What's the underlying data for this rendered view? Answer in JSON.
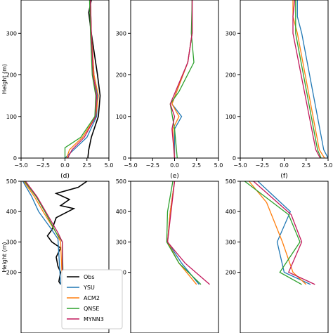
{
  "colors": {
    "Obs": "#000000",
    "YSU": "#1f77b4",
    "ACM2": "#ff7f0e",
    "QNSE": "#2ca02c",
    "MYNN3": "#c2185b"
  },
  "legend": [
    "Obs",
    "YSU",
    "ACM2",
    "QNSE",
    "MYNN3"
  ],
  "chart_data": [
    {
      "type": "line",
      "panel": "a",
      "title": "",
      "ylabel": "Height (m)",
      "xlim": [
        -5,
        5
      ],
      "ylim": [
        0,
        380
      ],
      "xticks": [
        "−5.0",
        "−2.5",
        "0.0",
        "2.5",
        "5.0"
      ],
      "yticks": [
        "0",
        "100",
        "200",
        "300"
      ],
      "series": [
        {
          "name": "Obs",
          "x": [
            3.0,
            2.7,
            3.0,
            3.7,
            4.0,
            3.8,
            3.0,
            2.7,
            2.6
          ],
          "y": [
            380,
            350,
            300,
            200,
            150,
            100,
            50,
            20,
            0
          ]
        },
        {
          "name": "YSU",
          "x": [
            2.9,
            3.0,
            3.3,
            3.7,
            3.6,
            2.5,
            1.0,
            0.0
          ],
          "y": [
            380,
            300,
            200,
            150,
            100,
            50,
            20,
            0
          ]
        },
        {
          "name": "ACM2",
          "x": [
            2.9,
            3.0,
            3.3,
            3.8,
            3.5,
            2.0,
            0.5,
            0.2
          ],
          "y": [
            380,
            300,
            200,
            150,
            100,
            50,
            20,
            0
          ]
        },
        {
          "name": "QNSE",
          "x": [
            2.8,
            2.9,
            3.1,
            3.5,
            3.4,
            1.8,
            0.0,
            0.0
          ],
          "y": [
            380,
            300,
            200,
            150,
            100,
            50,
            25,
            0
          ]
        },
        {
          "name": "MYNN3",
          "x": [
            2.9,
            3.0,
            3.2,
            3.6,
            3.5,
            2.2,
            0.8,
            0.3
          ],
          "y": [
            380,
            300,
            200,
            150,
            100,
            50,
            20,
            0
          ]
        }
      ]
    },
    {
      "type": "line",
      "panel": "b",
      "title": "",
      "ylabel": "",
      "xlim": [
        -5,
        5
      ],
      "ylim": [
        0,
        380
      ],
      "xticks": [
        "−5.0",
        "−2.5",
        "0.0",
        "2.5",
        "5.0"
      ],
      "yticks": [
        "0",
        "100",
        "200",
        "300"
      ],
      "series": [
        {
          "name": "YSU",
          "x": [
            2.0,
            2.0,
            1.5,
            -0.3,
            0.8,
            0.0,
            0.0
          ],
          "y": [
            380,
            300,
            230,
            130,
            100,
            70,
            0
          ]
        },
        {
          "name": "ACM2",
          "x": [
            2.0,
            2.0,
            1.5,
            -0.3,
            0.5,
            -0.2,
            0.0
          ],
          "y": [
            380,
            300,
            230,
            130,
            100,
            70,
            0
          ]
        },
        {
          "name": "QNSE",
          "x": [
            2.0,
            1.9,
            2.2,
            0.5,
            -0.5,
            0.0,
            0.3
          ],
          "y": [
            380,
            300,
            230,
            160,
            130,
            70,
            0
          ]
        },
        {
          "name": "MYNN3",
          "x": [
            2.0,
            2.0,
            1.5,
            -0.5,
            0.0,
            -0.3,
            0.0
          ],
          "y": [
            380,
            300,
            230,
            130,
            100,
            70,
            0
          ]
        }
      ]
    },
    {
      "type": "line",
      "panel": "c",
      "title": "",
      "ylabel": "",
      "xlim": [
        -5,
        5
      ],
      "ylim": [
        0,
        380
      ],
      "xticks": [
        "−5.0",
        "−2.5",
        "0.0",
        "2.5",
        "5.0"
      ],
      "yticks": [
        "0",
        "100",
        "200",
        "300"
      ],
      "series": [
        {
          "name": "YSU",
          "x": [
            1.5,
            1.5,
            2.0,
            4.5,
            5.0
          ],
          "y": [
            380,
            340,
            300,
            20,
            0
          ]
        },
        {
          "name": "ACM2",
          "x": [
            1.0,
            1.0,
            1.5,
            4.0,
            4.6
          ],
          "y": [
            380,
            340,
            300,
            20,
            0
          ]
        },
        {
          "name": "QNSE",
          "x": [
            1.3,
            1.3,
            1.3,
            3.8,
            4.2
          ],
          "y": [
            380,
            340,
            300,
            20,
            0
          ]
        },
        {
          "name": "MYNN3",
          "x": [
            1.2,
            1.0,
            1.0,
            3.6,
            4.1
          ],
          "y": [
            380,
            340,
            300,
            20,
            0
          ]
        }
      ]
    },
    {
      "type": "line",
      "panel": "d",
      "title": "(d)",
      "ylabel": "Height (m)",
      "xlim": [
        -5,
        5
      ],
      "ylim": [
        0,
        500
      ],
      "xticks": [],
      "yticks": [
        "200",
        "300",
        "400",
        "500"
      ],
      "series": [
        {
          "name": "Obs",
          "x": [
            2.5,
            1.5,
            -1.0,
            0.5,
            -0.5,
            1.0,
            -1.0,
            -1.5,
            -2.0,
            -1.5,
            -0.5,
            -1.0,
            -0.8,
            -0.5,
            -0.7,
            -0.5
          ],
          "y": [
            500,
            480,
            460,
            440,
            420,
            410,
            380,
            340,
            320,
            300,
            280,
            250,
            220,
            200,
            170,
            160
          ]
        },
        {
          "name": "YSU",
          "x": [
            -4.8,
            -3.8,
            -3.0,
            -1.5,
            -0.8,
            -0.5
          ],
          "y": [
            500,
            450,
            400,
            340,
            310,
            160
          ]
        },
        {
          "name": "ACM2",
          "x": [
            -4.7,
            -3.5,
            -2.5,
            -1.0,
            -0.5,
            -0.3
          ],
          "y": [
            500,
            450,
            400,
            330,
            300,
            160
          ]
        },
        {
          "name": "QNSE",
          "x": [
            -4.6,
            -3.3,
            -2.3,
            -1.0,
            -0.3,
            -0.2
          ],
          "y": [
            500,
            450,
            400,
            330,
            300,
            160
          ]
        },
        {
          "name": "MYNN3",
          "x": [
            -4.5,
            -3.2,
            -2.2,
            -0.8,
            -0.3,
            -0.3
          ],
          "y": [
            500,
            450,
            400,
            330,
            300,
            160
          ]
        }
      ]
    },
    {
      "type": "line",
      "panel": "e",
      "title": "(e)",
      "ylabel": "",
      "xlim": [
        -5,
        5
      ],
      "ylim": [
        0,
        500
      ],
      "xticks": [],
      "yticks": [
        "200",
        "300",
        "400",
        "500"
      ],
      "series": [
        {
          "name": "YSU",
          "x": [
            0.0,
            -0.5,
            -0.8,
            0.8,
            2.8
          ],
          "y": [
            500,
            400,
            300,
            230,
            160
          ]
        },
        {
          "name": "ACM2",
          "x": [
            0.0,
            -0.5,
            -0.8,
            0.5,
            2.5
          ],
          "y": [
            500,
            400,
            300,
            230,
            160
          ]
        },
        {
          "name": "QNSE",
          "x": [
            -0.2,
            -0.8,
            -0.9,
            0.5,
            3.0
          ],
          "y": [
            500,
            400,
            300,
            230,
            160
          ]
        },
        {
          "name": "MYNN3",
          "x": [
            0.0,
            -0.4,
            -0.8,
            1.2,
            4.0
          ],
          "y": [
            500,
            400,
            300,
            230,
            160
          ]
        }
      ]
    },
    {
      "type": "line",
      "panel": "f",
      "title": "(f)",
      "ylabel": "",
      "xlim": [
        -5,
        5
      ],
      "ylim": [
        0,
        500
      ],
      "xticks": [],
      "yticks": [
        "200",
        "300",
        "400",
        "500"
      ],
      "series": [
        {
          "name": "YSU",
          "x": [
            -3.0,
            0.7,
            -0.8,
            0.0,
            3.0
          ],
          "y": [
            500,
            400,
            300,
            200,
            160
          ]
        },
        {
          "name": "ACM2",
          "x": [
            -4.0,
            -2.0,
            -0.2,
            1.0,
            2.5
          ],
          "y": [
            500,
            430,
            300,
            200,
            160
          ]
        },
        {
          "name": "QNSE",
          "x": [
            -4.5,
            0.5,
            1.8,
            -0.5,
            2.0
          ],
          "y": [
            500,
            390,
            300,
            200,
            160
          ]
        },
        {
          "name": "MYNN3",
          "x": [
            -3.5,
            0.8,
            2.0,
            0.5,
            3.5
          ],
          "y": [
            500,
            390,
            300,
            200,
            160
          ]
        }
      ]
    }
  ]
}
